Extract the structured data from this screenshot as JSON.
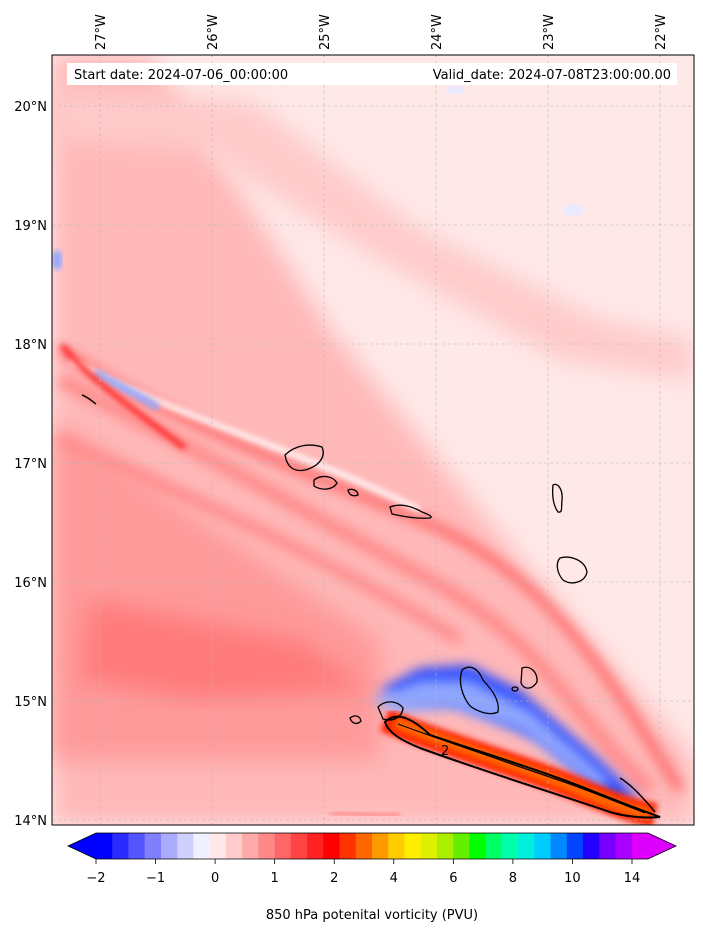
{
  "header": {
    "start_date": "Start date: 2024-07-06_00:00:00",
    "valid_date": "Valid_date: 2024-07-08T23:00:00.00"
  },
  "map": {
    "lon_ticks": [
      {
        "value": -27,
        "label": "27°W"
      },
      {
        "value": -26,
        "label": "26°W"
      },
      {
        "value": -25,
        "label": "25°W"
      },
      {
        "value": -24,
        "label": "24°W"
      },
      {
        "value": -23,
        "label": "23°W"
      },
      {
        "value": -22,
        "label": "22°W"
      }
    ],
    "lat_ticks": [
      {
        "value": 20,
        "label": "20°N"
      },
      {
        "value": 19,
        "label": "19°N"
      },
      {
        "value": 18,
        "label": "18°N"
      },
      {
        "value": 17,
        "label": "17°N"
      },
      {
        "value": 16,
        "label": "16°N"
      },
      {
        "value": 15,
        "label": "15°N"
      },
      {
        "value": 14,
        "label": "14°N"
      }
    ],
    "contour_label": "2",
    "background_color": "#ffe8e8",
    "land_outline_color": "#000000"
  },
  "colorbar": {
    "label": "850 hPa potenital vorticity (PVU)",
    "ticks": [
      "−2",
      "−1",
      "0",
      "1",
      "2",
      "4",
      "6",
      "8",
      "10",
      "14"
    ],
    "colors": [
      "#0000ff",
      "#2b2bff",
      "#5555ff",
      "#8080ff",
      "#aaaaff",
      "#d0d0ff",
      "#f0f0ff",
      "#ffe8e8",
      "#ffcccc",
      "#ffaaaa",
      "#ff8888",
      "#ff6666",
      "#ff4444",
      "#ff2222",
      "#ff0000",
      "#ff3300",
      "#ff6600",
      "#ff9900",
      "#ffcc00",
      "#ffee00",
      "#ddf000",
      "#aaee00",
      "#66ee00",
      "#00ff00",
      "#00ff66",
      "#00ffaa",
      "#00eedd",
      "#00ccff",
      "#0088ff",
      "#0044ff",
      "#2200ff",
      "#7700ff",
      "#aa00ff",
      "#dd00ff"
    ]
  }
}
